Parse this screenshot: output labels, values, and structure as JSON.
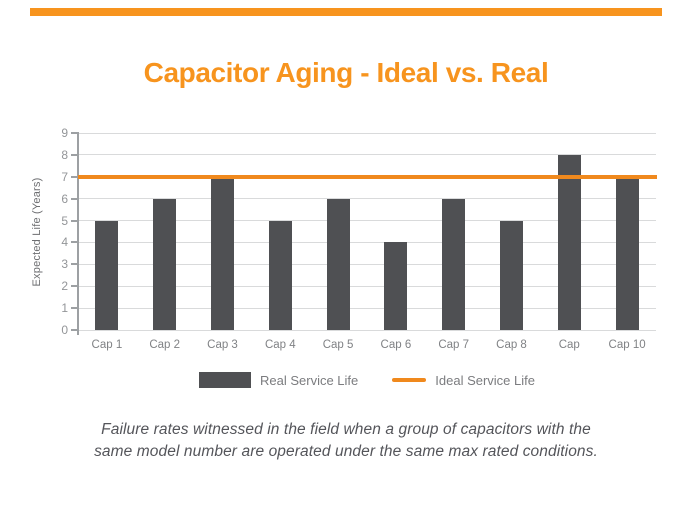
{
  "chart_data": {
    "type": "bar",
    "title": "Capacitor Aging - Ideal vs. Real",
    "categories": [
      "Cap 1",
      "Cap 2",
      "Cap 3",
      "Cap 4",
      "Cap 5",
      "Cap 6",
      "Cap 7",
      "Cap 8",
      "Cap",
      "Cap 10"
    ],
    "series": [
      {
        "name": "Real Service Life",
        "type": "bar",
        "values": [
          5,
          6,
          7,
          5,
          6,
          4,
          6,
          5,
          8,
          7
        ]
      },
      {
        "name": "Ideal Service Life",
        "type": "line",
        "value": 7
      }
    ],
    "xlabel": "",
    "ylabel": "Expected Life (Years)",
    "ylim": [
      0,
      9
    ],
    "ytick_step": 1,
    "grid": true,
    "legend_position": "bottom"
  },
  "caption": {
    "lines": [
      "Failure rates witnessed in the field when a group of capacitors with the",
      "same model number are operated under the same max rated conditions."
    ]
  },
  "colors": {
    "accent_orange": "#F7941E",
    "ideal_line_orange": "#F0891D",
    "bar_gray": "#4F5053",
    "gridline_gray": "#D9DADB",
    "axis_gray": "#9DA0A3",
    "tick_label_gray": "#939598",
    "caption_gray": "#54555A"
  }
}
